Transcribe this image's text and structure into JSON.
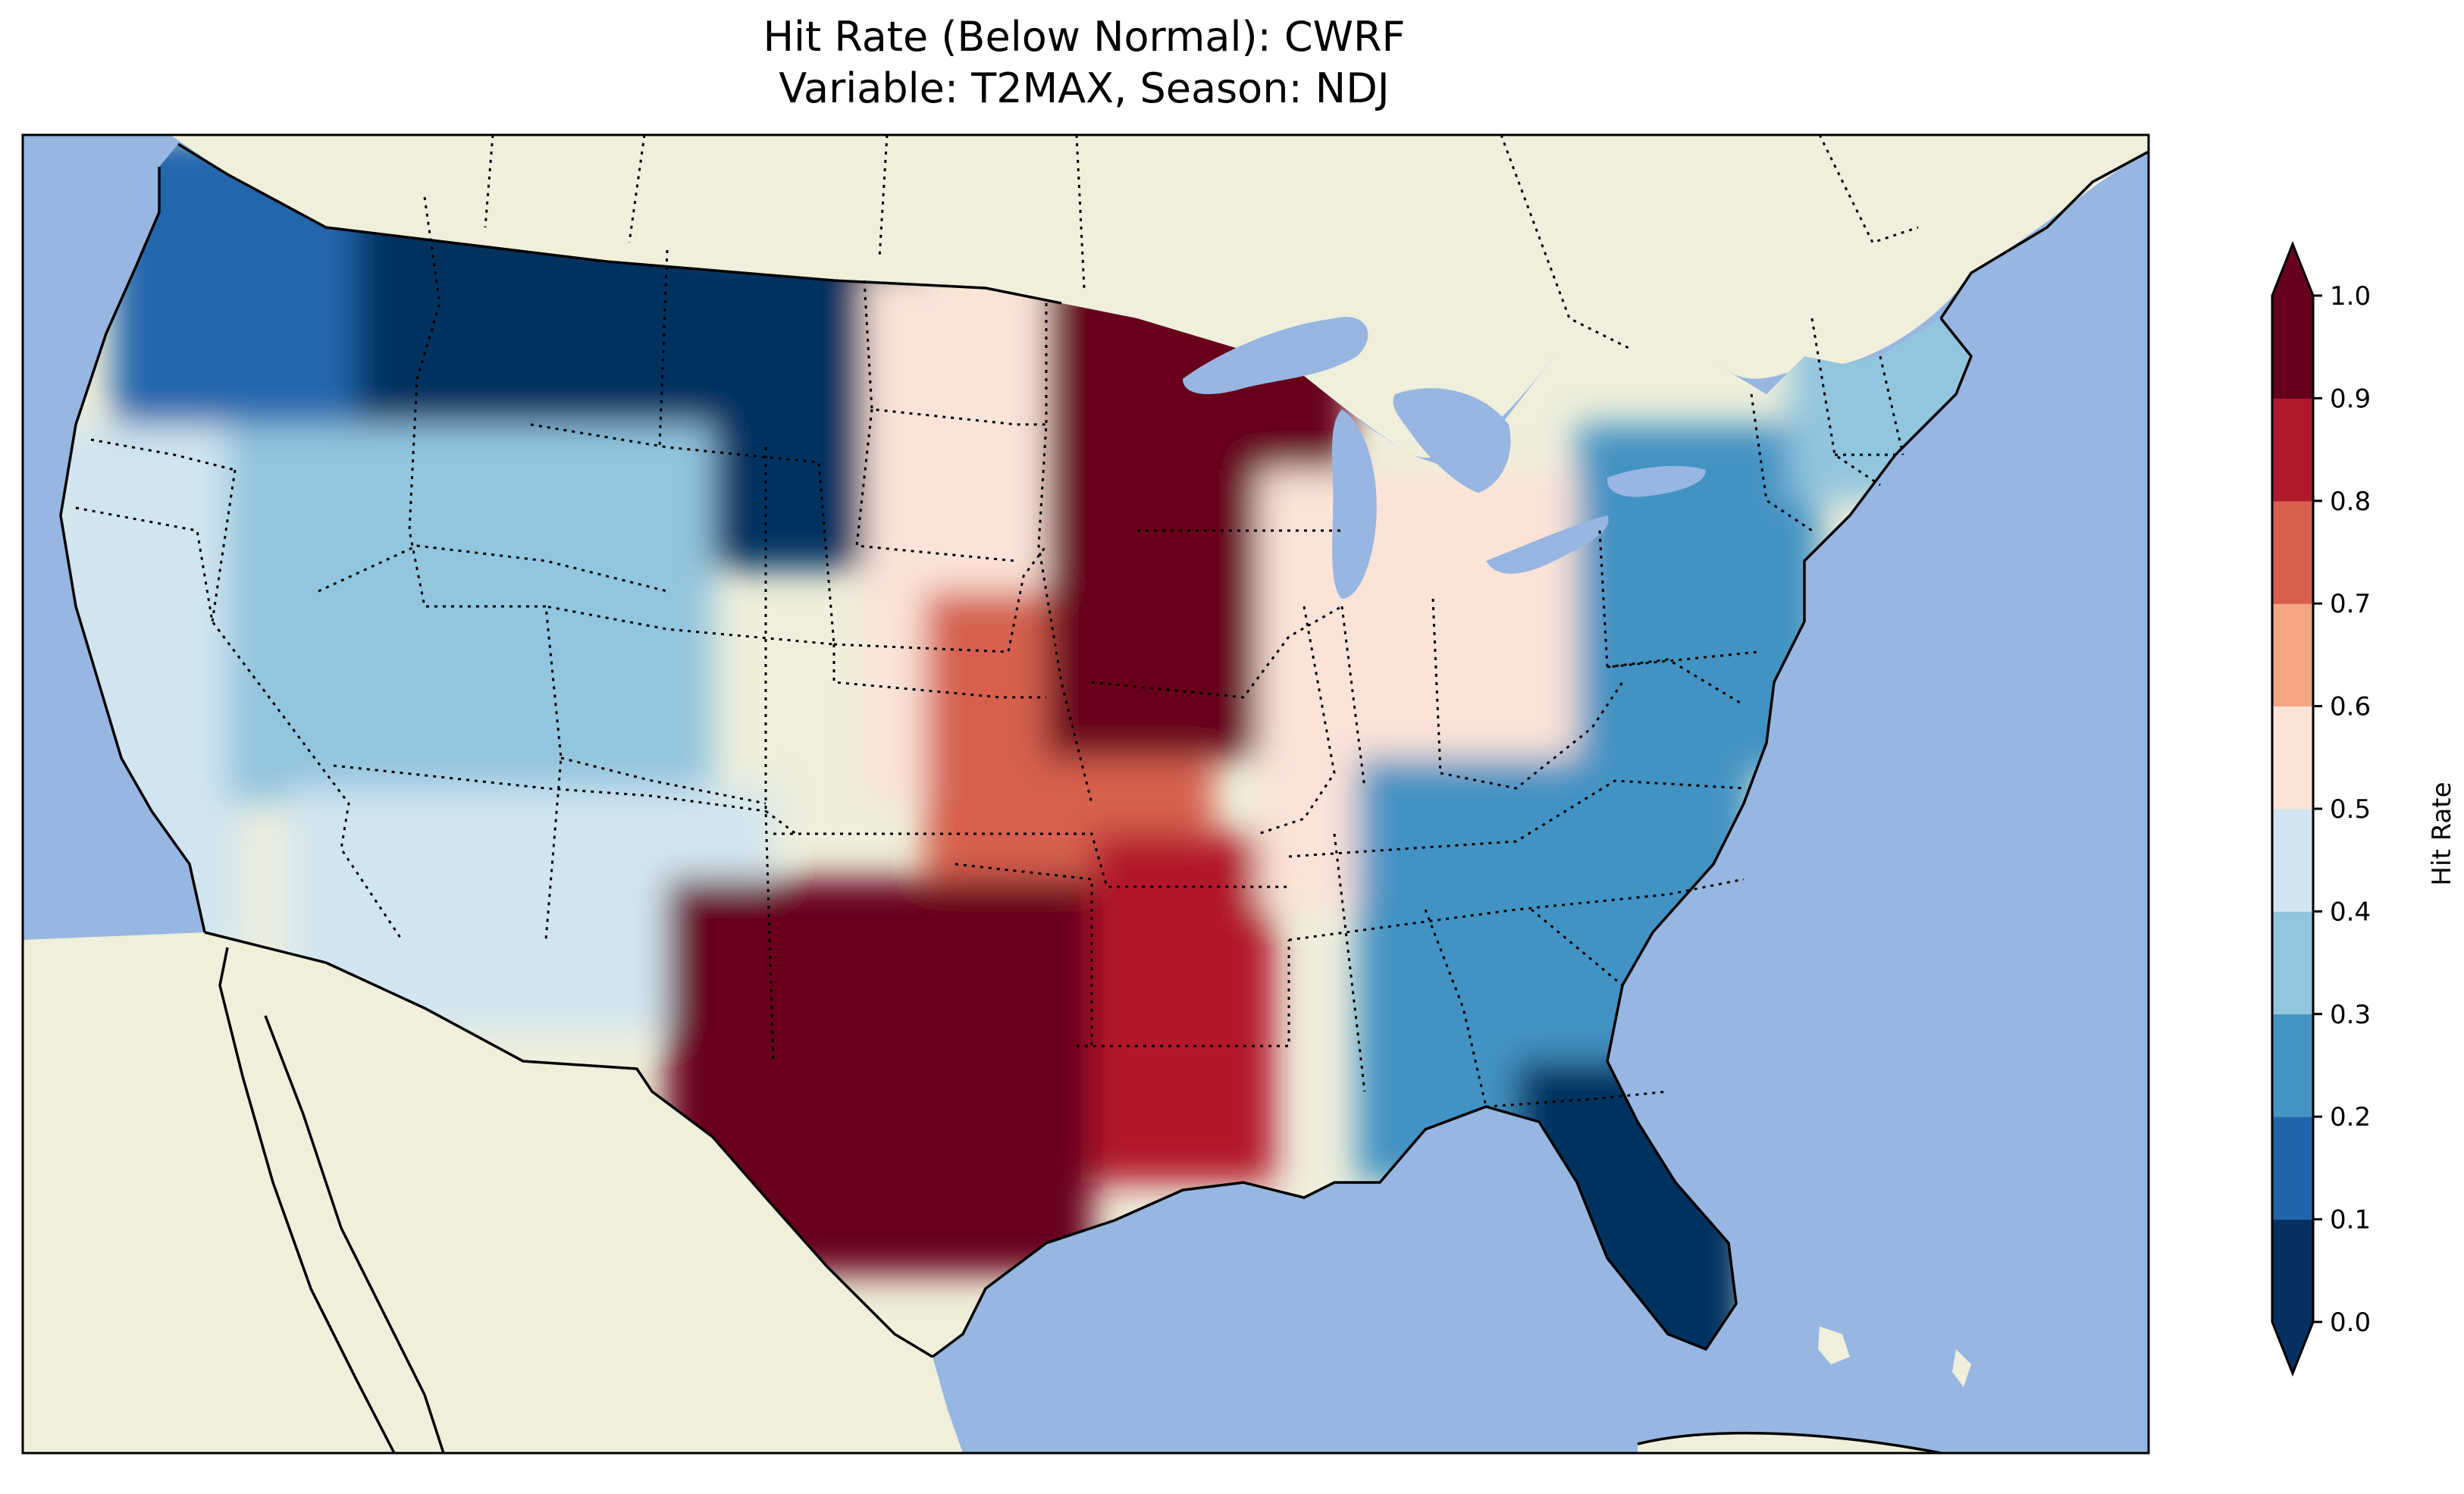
{
  "title": {
    "line1": "Hit Rate (Below Normal): CWRF",
    "line2": "Variable: T2MAX, Season: NDJ"
  },
  "colorbar": {
    "label": "Hit Rate",
    "ticks": [
      "0.0",
      "0.1",
      "0.2",
      "0.3",
      "0.4",
      "0.5",
      "0.6",
      "0.7",
      "0.8",
      "0.9",
      "1.0"
    ],
    "colors": [
      "#053061",
      "#2166ac",
      "#4393c3",
      "#92c5de",
      "#d1e5f0",
      "#fbe3d8",
      "#f4a582",
      "#d6604d",
      "#b2182b",
      "#67001f"
    ],
    "extend": "both"
  },
  "map_colors": {
    "ocean": "#97b6e1",
    "land": "#efefdb",
    "lakes": "#97b6e1"
  },
  "regions": [
    {
      "name": "pacific-northwest",
      "value": 0.15
    },
    {
      "name": "northern-rockies",
      "value": 0.05
    },
    {
      "name": "montana-wyoming",
      "value": 0.08
    },
    {
      "name": "california-coast",
      "value": 0.45
    },
    {
      "name": "great-basin",
      "value": 0.3
    },
    {
      "name": "southwest",
      "value": 0.4
    },
    {
      "name": "northern-plains",
      "value": 0.55
    },
    {
      "name": "central-plains",
      "value": 0.75
    },
    {
      "name": "upper-midwest",
      "value": 0.95
    },
    {
      "name": "texas",
      "value": 0.95
    },
    {
      "name": "lower-mississippi",
      "value": 0.85
    },
    {
      "name": "ohio-valley",
      "value": 0.55
    },
    {
      "name": "southeast",
      "value": 0.25
    },
    {
      "name": "mid-atlantic",
      "value": 0.25
    },
    {
      "name": "new-england",
      "value": 0.35
    },
    {
      "name": "florida",
      "value": 0.05
    }
  ]
}
